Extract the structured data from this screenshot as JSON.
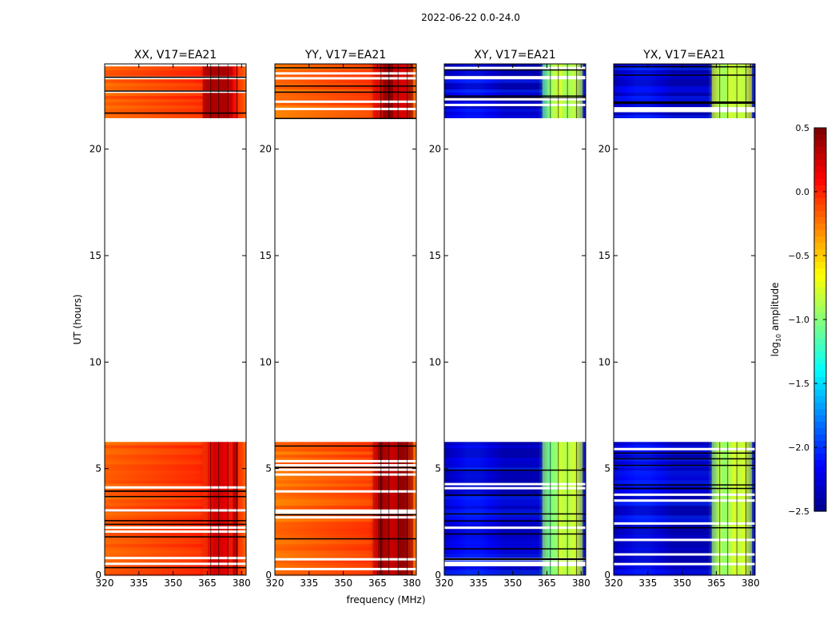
{
  "figure": {
    "suptitle": "2022-06-22 0.0-24.0"
  },
  "chart_data": {
    "type": "heatmap",
    "layout": "4 panels side by side, shared colorbar on right",
    "x_label": "frequency (MHz)",
    "y_label": "UT (hours)",
    "xlim": [
      320,
      382
    ],
    "ylim": [
      0,
      24
    ],
    "x_ticks": [
      320,
      335,
      350,
      365,
      380
    ],
    "y_ticks": [
      0,
      5,
      10,
      15,
      20
    ],
    "data_gap_hours": [
      6.25,
      21.45
    ],
    "colorbar": {
      "label": "log10 amplitude",
      "label_base": "log",
      "label_sub": "10",
      "label_rest": " amplitude",
      "colormap": "jet",
      "vmin": -2.5,
      "vmax": 0.5,
      "ticks": [
        {
          "value": 0.5,
          "label": "0.5"
        },
        {
          "value": 0.0,
          "label": "0.0"
        },
        {
          "value": -0.5,
          "label": "−0.5"
        },
        {
          "value": -1.0,
          "label": "−1.0"
        },
        {
          "value": -1.5,
          "label": "−1.5"
        },
        {
          "value": -2.0,
          "label": "−2.0"
        },
        {
          "value": -2.5,
          "label": "−2.5"
        }
      ]
    },
    "panels": [
      {
        "name": "xx",
        "title": "XX, V17=EA21",
        "base_log_amp": -0.1,
        "rfi_log_amp": 0.2
      },
      {
        "name": "yy",
        "title": "YY, V17=EA21",
        "base_log_amp": -0.15,
        "rfi_log_amp": 0.35
      },
      {
        "name": "xy",
        "title": "XY, V17=EA21",
        "base_log_amp": -2.3,
        "rfi_log_amp": -0.9
      },
      {
        "name": "yx",
        "title": "YX, V17=EA21",
        "base_log_amp": -2.3,
        "rfi_log_amp": -0.9
      }
    ],
    "rfi_band_mhz": [
      363,
      380
    ]
  }
}
